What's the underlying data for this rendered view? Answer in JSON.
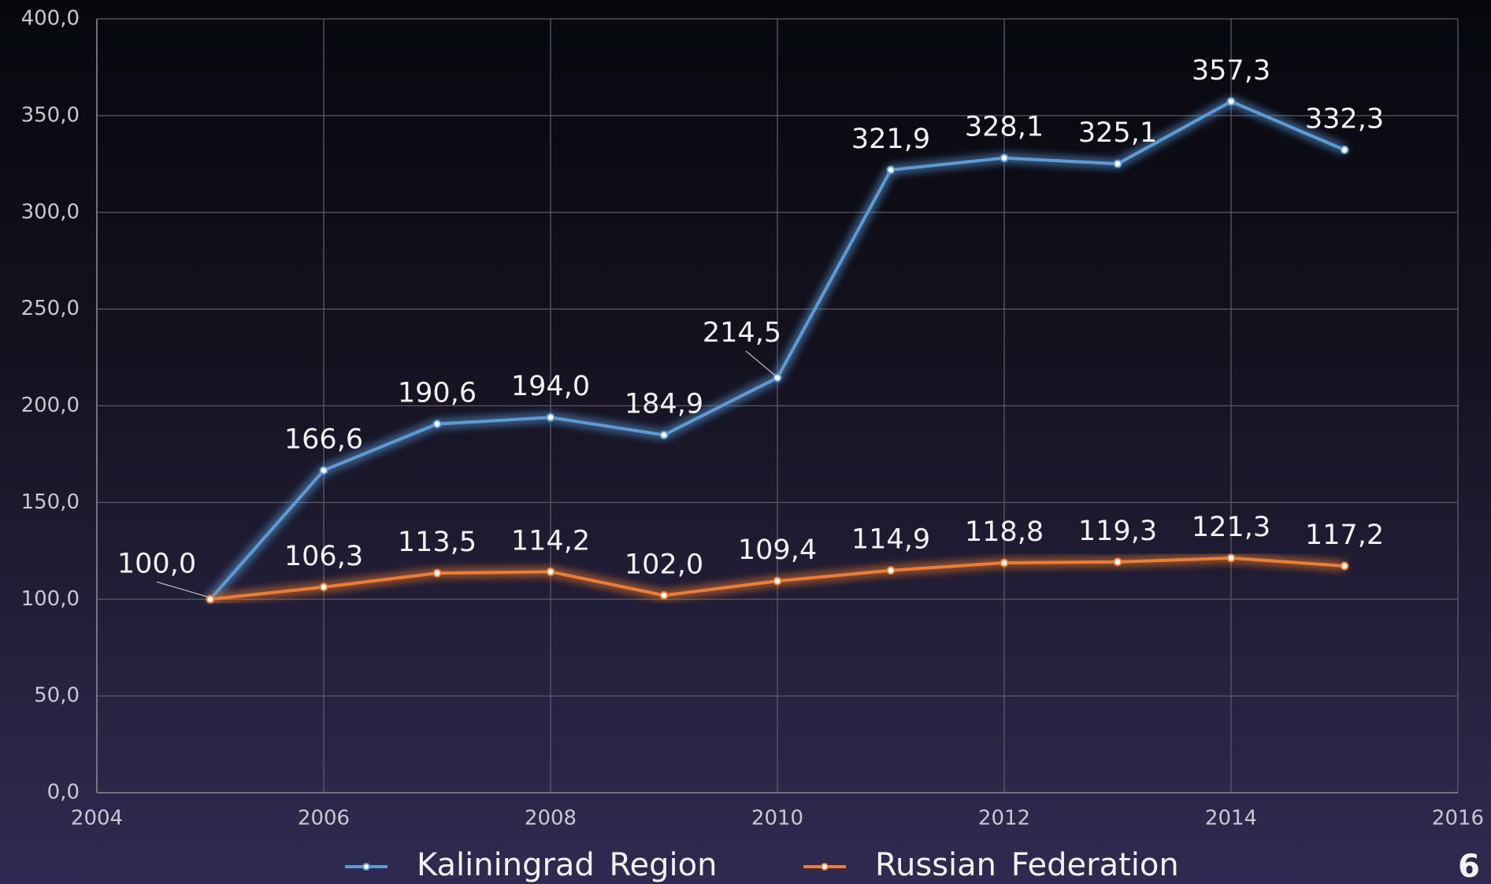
{
  "chart_data": {
    "type": "line",
    "x": [
      2005,
      2006,
      2007,
      2008,
      2009,
      2010,
      2011,
      2012,
      2013,
      2014,
      2015
    ],
    "series": [
      {
        "name": "Kaliningrad Region",
        "color": "#5b9bd5",
        "values": [
          100.0,
          166.6,
          190.6,
          194.0,
          184.9,
          214.5,
          321.9,
          328.1,
          325.1,
          357.3,
          332.3
        ],
        "value_labels": [
          null,
          "166,6",
          "190,6",
          "194,0",
          "184,9",
          "214,5",
          "321,9",
          "328,1",
          "325,1",
          "357,3",
          "332,3"
        ]
      },
      {
        "name": "Russian Federation",
        "color": "#ed7d31",
        "values": [
          100.0,
          106.3,
          113.5,
          114.2,
          102.0,
          109.4,
          114.9,
          118.8,
          119.3,
          121.3,
          117.2
        ],
        "value_labels": [
          "100,0",
          "106,3",
          "113,5",
          "114,2",
          "102,0",
          "109,4",
          "114,9",
          "118,8",
          "119,3",
          "121,3",
          "117,2"
        ]
      }
    ],
    "xlim": [
      2004,
      2016
    ],
    "xticks": [
      2004,
      2006,
      2008,
      2010,
      2012,
      2014,
      2016
    ],
    "ylim": [
      0,
      400
    ],
    "yticks": [
      {
        "value": 0,
        "label": "0,0"
      },
      {
        "value": 50,
        "label": "50,0"
      },
      {
        "value": 100,
        "label": "100,0"
      },
      {
        "value": 150,
        "label": "150,0"
      },
      {
        "value": 200,
        "label": "200,0"
      },
      {
        "value": 250,
        "label": "250,0"
      },
      {
        "value": 300,
        "label": "300,0"
      },
      {
        "value": 350,
        "label": "350,0"
      },
      {
        "value": 400,
        "label": "400,0"
      }
    ],
    "grid": true,
    "legend": "bottom"
  },
  "page_number": "6"
}
